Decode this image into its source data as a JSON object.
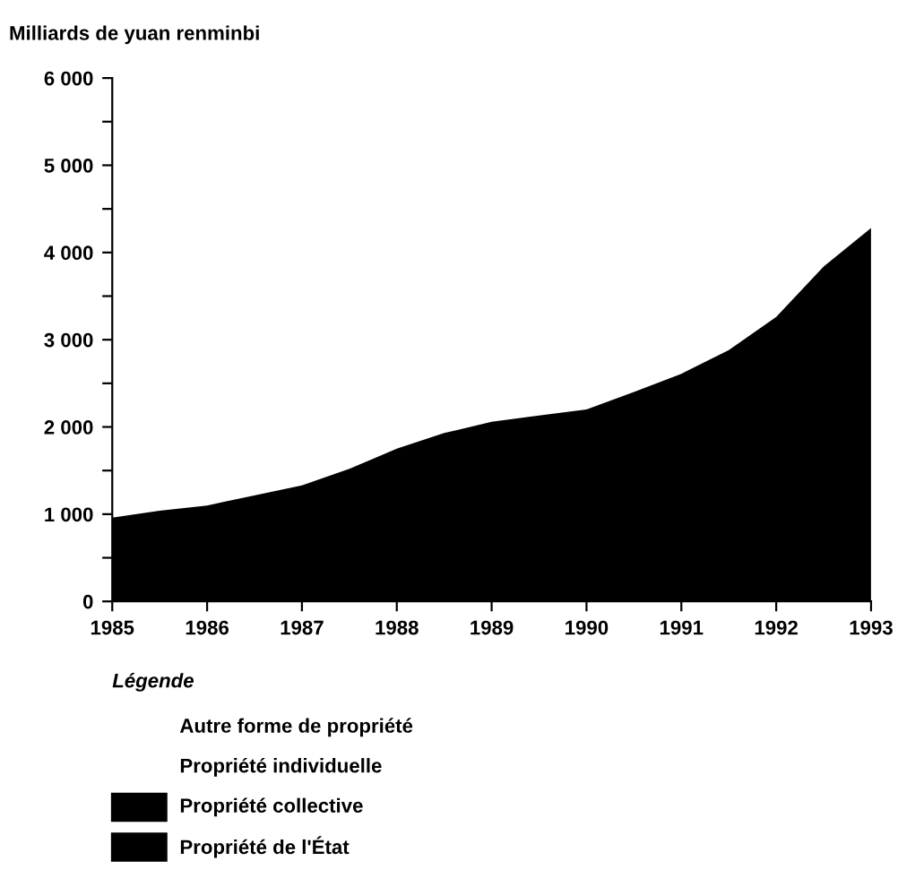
{
  "chart_data": {
    "type": "area",
    "ylabel": "Milliards de yuan renminbi",
    "legend_title": "Légende",
    "x": [
      1985,
      1985.5,
      1986,
      1987,
      1987.5,
      1988,
      1988.5,
      1989,
      1989.5,
      1990,
      1990.5,
      1991,
      1991.5,
      1992,
      1992.5,
      1993
    ],
    "series": [
      {
        "color": "#000000",
        "values": [
          960,
          1040,
          1100,
          1330,
          1520,
          1750,
          1930,
          2060,
          2130,
          2200,
          2400,
          2610,
          2880,
          3260,
          3840,
          4280
        ]
      }
    ],
    "annotations": [
      "Autre forme de propriété",
      "Propriété individuelle",
      "Propriété collective",
      "Propriété de l'État"
    ],
    "xlim": [
      1985,
      1993
    ],
    "xticks": [
      1985,
      1986,
      1987,
      1988,
      1989,
      1990,
      1991,
      1992,
      1993
    ],
    "ylim": [
      0,
      6000
    ],
    "yticks": [
      {
        "value": 0,
        "label": "0"
      },
      {
        "value": 500,
        "label": null
      },
      {
        "value": 1000,
        "label": "1 000"
      },
      {
        "value": 1500,
        "label": null
      },
      {
        "value": 2000,
        "label": "2 000"
      },
      {
        "value": 2500,
        "label": null
      },
      {
        "value": 3000,
        "label": "3 000"
      },
      {
        "value": 3500,
        "label": null
      },
      {
        "value": 4000,
        "label": "4 000"
      },
      {
        "value": 4500,
        "label": null
      },
      {
        "value": 5000,
        "label": "5 000"
      },
      {
        "value": 5500,
        "label": null
      },
      {
        "value": 6000,
        "label": "6 000"
      }
    ],
    "grid": false,
    "legend": false
  }
}
